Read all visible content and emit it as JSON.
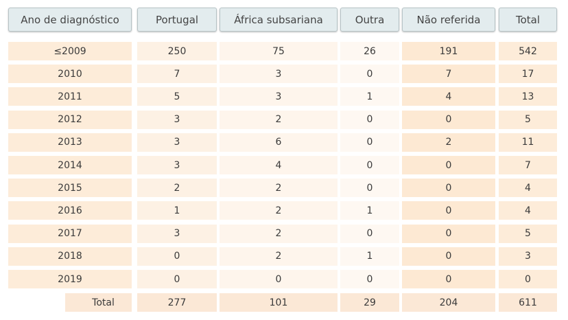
{
  "table": {
    "headers": [
      "Ano de diagnóstico",
      "Portugal",
      "África subsariana",
      "Outra",
      "Não referida",
      "Total"
    ],
    "rows": [
      [
        "≤2009",
        "250",
        "75",
        "26",
        "191",
        "542"
      ],
      [
        "2010",
        "7",
        "3",
        "0",
        "7",
        "17"
      ],
      [
        "2011",
        "5",
        "3",
        "1",
        "4",
        "13"
      ],
      [
        "2012",
        "3",
        "2",
        "0",
        "0",
        "5"
      ],
      [
        "2013",
        "3",
        "6",
        "0",
        "2",
        "11"
      ],
      [
        "2014",
        "3",
        "4",
        "0",
        "0",
        "7"
      ],
      [
        "2015",
        "2",
        "2",
        "0",
        "0",
        "4"
      ],
      [
        "2016",
        "1",
        "2",
        "1",
        "0",
        "4"
      ],
      [
        "2017",
        "3",
        "2",
        "0",
        "0",
        "5"
      ],
      [
        "2018",
        "0",
        "2",
        "1",
        "0",
        "3"
      ],
      [
        "2019",
        "0",
        "0",
        "0",
        "0",
        "0"
      ]
    ],
    "total_row": [
      "Total",
      "277",
      "101",
      "29",
      "204",
      "611"
    ]
  }
}
